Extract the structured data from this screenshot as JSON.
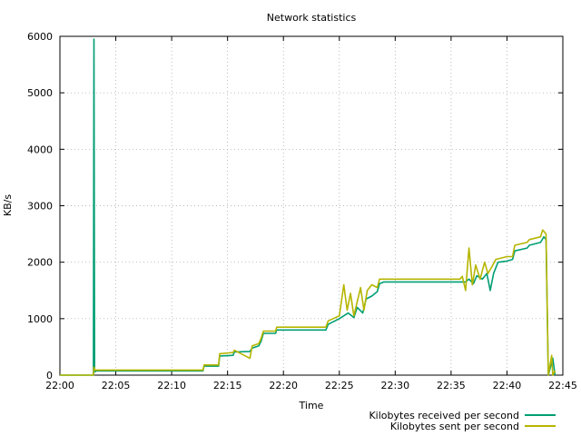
{
  "chart_data": {
    "type": "line",
    "title": "Network statistics",
    "xlabel": "Time",
    "ylabel": "KB/s",
    "ylim": [
      0,
      6000
    ],
    "xlim": [
      0,
      45
    ],
    "yticks": [
      0,
      1000,
      2000,
      3000,
      4000,
      5000,
      6000
    ],
    "xticks": [
      0,
      5,
      10,
      15,
      20,
      25,
      30,
      35,
      40,
      45
    ],
    "xtick_labels": [
      "22:00",
      "22:05",
      "22:10",
      "22:15",
      "22:20",
      "22:25",
      "22:30",
      "22:35",
      "22:40",
      "22:45"
    ],
    "grid": true,
    "legend_position": "bottom-right",
    "series": [
      {
        "name": "Kilobytes received per second",
        "color": "#009e73",
        "points": [
          [
            0,
            0
          ],
          [
            3,
            0
          ],
          [
            3.05,
            5950
          ],
          [
            3.1,
            60
          ],
          [
            3.3,
            75
          ],
          [
            12.8,
            75
          ],
          [
            12.9,
            160
          ],
          [
            14.2,
            160
          ],
          [
            14.3,
            340
          ],
          [
            15.5,
            350
          ],
          [
            15.6,
            410
          ],
          [
            17,
            420
          ],
          [
            17.2,
            480
          ],
          [
            17.8,
            520
          ],
          [
            18,
            600
          ],
          [
            18.2,
            740
          ],
          [
            19.3,
            740
          ],
          [
            19.4,
            800
          ],
          [
            23.8,
            800
          ],
          [
            24,
            900
          ],
          [
            25,
            1000
          ],
          [
            25.8,
            1100
          ],
          [
            26.3,
            1020
          ],
          [
            26.6,
            1200
          ],
          [
            27.1,
            1100
          ],
          [
            27.4,
            1350
          ],
          [
            27.9,
            1400
          ],
          [
            28.4,
            1480
          ],
          [
            28.6,
            1620
          ],
          [
            29,
            1650
          ],
          [
            36.3,
            1650
          ],
          [
            36.6,
            1700
          ],
          [
            37,
            1620
          ],
          [
            37.3,
            1760
          ],
          [
            37.8,
            1700
          ],
          [
            38.2,
            1800
          ],
          [
            38.5,
            1500
          ],
          [
            38.8,
            1800
          ],
          [
            39.2,
            2000
          ],
          [
            40,
            2020
          ],
          [
            40.5,
            2050
          ],
          [
            40.7,
            2200
          ],
          [
            41.8,
            2250
          ],
          [
            42,
            2300
          ],
          [
            43,
            2350
          ],
          [
            43.3,
            2450
          ],
          [
            43.5,
            2400
          ],
          [
            43.7,
            0
          ],
          [
            44.1,
            300
          ],
          [
            44.3,
            0
          ]
        ]
      },
      {
        "name": "Kilobytes sent per second",
        "color": "#b5b500",
        "points": [
          [
            0,
            0
          ],
          [
            3,
            0
          ],
          [
            3.05,
            140
          ],
          [
            3.15,
            90
          ],
          [
            12.8,
            90
          ],
          [
            12.9,
            180
          ],
          [
            14.2,
            180
          ],
          [
            14.3,
            380
          ],
          [
            15.5,
            400
          ],
          [
            15.6,
            440
          ],
          [
            17,
            300
          ],
          [
            17.2,
            520
          ],
          [
            17.8,
            560
          ],
          [
            18,
            650
          ],
          [
            18.2,
            780
          ],
          [
            19.3,
            780
          ],
          [
            19.4,
            850
          ],
          [
            23.8,
            850
          ],
          [
            24,
            960
          ],
          [
            25,
            1050
          ],
          [
            25.4,
            1600
          ],
          [
            25.7,
            1150
          ],
          [
            26,
            1450
          ],
          [
            26.3,
            1050
          ],
          [
            26.6,
            1300
          ],
          [
            26.9,
            1550
          ],
          [
            27.2,
            1150
          ],
          [
            27.5,
            1500
          ],
          [
            27.9,
            1600
          ],
          [
            28.4,
            1550
          ],
          [
            28.6,
            1700
          ],
          [
            29,
            1700
          ],
          [
            35.8,
            1700
          ],
          [
            36,
            1750
          ],
          [
            36.3,
            1500
          ],
          [
            36.6,
            2250
          ],
          [
            36.9,
            1600
          ],
          [
            37.2,
            1950
          ],
          [
            37.6,
            1700
          ],
          [
            38,
            2000
          ],
          [
            38.3,
            1800
          ],
          [
            38.6,
            1900
          ],
          [
            39,
            2050
          ],
          [
            40,
            2100
          ],
          [
            40.5,
            2100
          ],
          [
            40.7,
            2300
          ],
          [
            41.8,
            2350
          ],
          [
            42,
            2400
          ],
          [
            43,
            2450
          ],
          [
            43.2,
            2570
          ],
          [
            43.5,
            2500
          ],
          [
            43.7,
            0
          ],
          [
            44,
            350
          ],
          [
            44.1,
            0
          ],
          [
            44.3,
            80
          ]
        ]
      }
    ]
  }
}
